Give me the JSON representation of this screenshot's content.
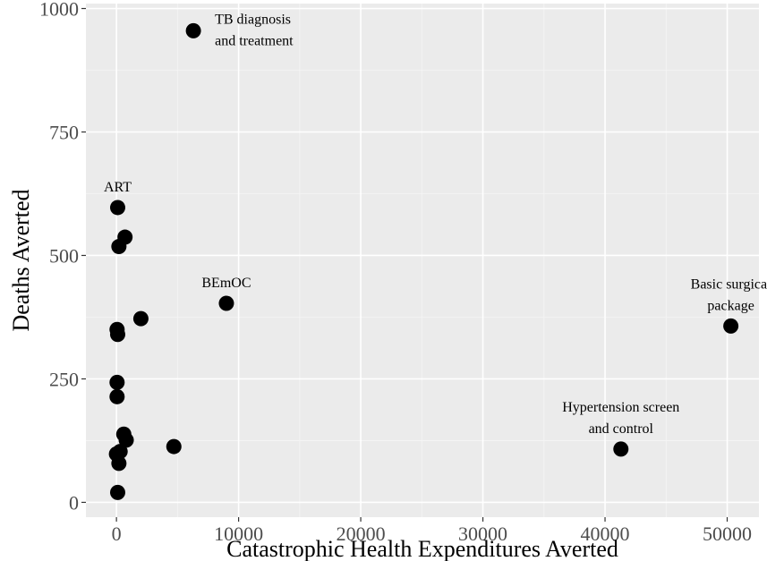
{
  "chart_data": {
    "type": "scatter",
    "xlabel": "Catastrophic Health Expenditures Averted",
    "ylabel": "Deaths Averted",
    "xlim": [
      -2500,
      52600
    ],
    "ylim": [
      -30,
      1010
    ],
    "x_ticks": [
      0,
      10000,
      20000,
      30000,
      40000,
      50000
    ],
    "x_tick_labels": [
      "0",
      "10000",
      "20000",
      "30000",
      "40000",
      "50000"
    ],
    "y_ticks": [
      0,
      250,
      500,
      750,
      1000
    ],
    "y_tick_labels": [
      "0",
      "250",
      "500",
      "750",
      "1000"
    ],
    "grid": true,
    "legend": "none",
    "points": [
      {
        "x": 6300,
        "y": 955,
        "label": [
          "TB diagnosis",
          "and treatment"
        ],
        "label_pos": "upper-right"
      },
      {
        "x": 100,
        "y": 597,
        "label": [
          "ART"
        ],
        "label_pos": "above"
      },
      {
        "x": 700,
        "y": 537
      },
      {
        "x": 200,
        "y": 518
      },
      {
        "x": 9000,
        "y": 403,
        "label": [
          "BEmOC"
        ],
        "label_pos": "above"
      },
      {
        "x": 2000,
        "y": 372
      },
      {
        "x": 50300,
        "y": 357,
        "label": [
          "Basic surgical",
          "package"
        ],
        "label_pos": "above"
      },
      {
        "x": 50,
        "y": 350
      },
      {
        "x": 100,
        "y": 340
      },
      {
        "x": 50,
        "y": 243
      },
      {
        "x": 50,
        "y": 214
      },
      {
        "x": 600,
        "y": 138
      },
      {
        "x": 800,
        "y": 126
      },
      {
        "x": 4700,
        "y": 113
      },
      {
        "x": 41300,
        "y": 108,
        "label": [
          "Hypertension screen",
          "and control"
        ],
        "label_pos": "above"
      },
      {
        "x": 300,
        "y": 103
      },
      {
        "x": 0,
        "y": 98
      },
      {
        "x": 200,
        "y": 79
      },
      {
        "x": 100,
        "y": 20
      }
    ]
  },
  "colors": {
    "panel_bg": "#ebebeb",
    "grid_major": "#ffffff",
    "grid_minor": "#f5f5f5",
    "point": "#000000",
    "tick_text": "#4d4d4d",
    "tick_mark": "#333333"
  }
}
